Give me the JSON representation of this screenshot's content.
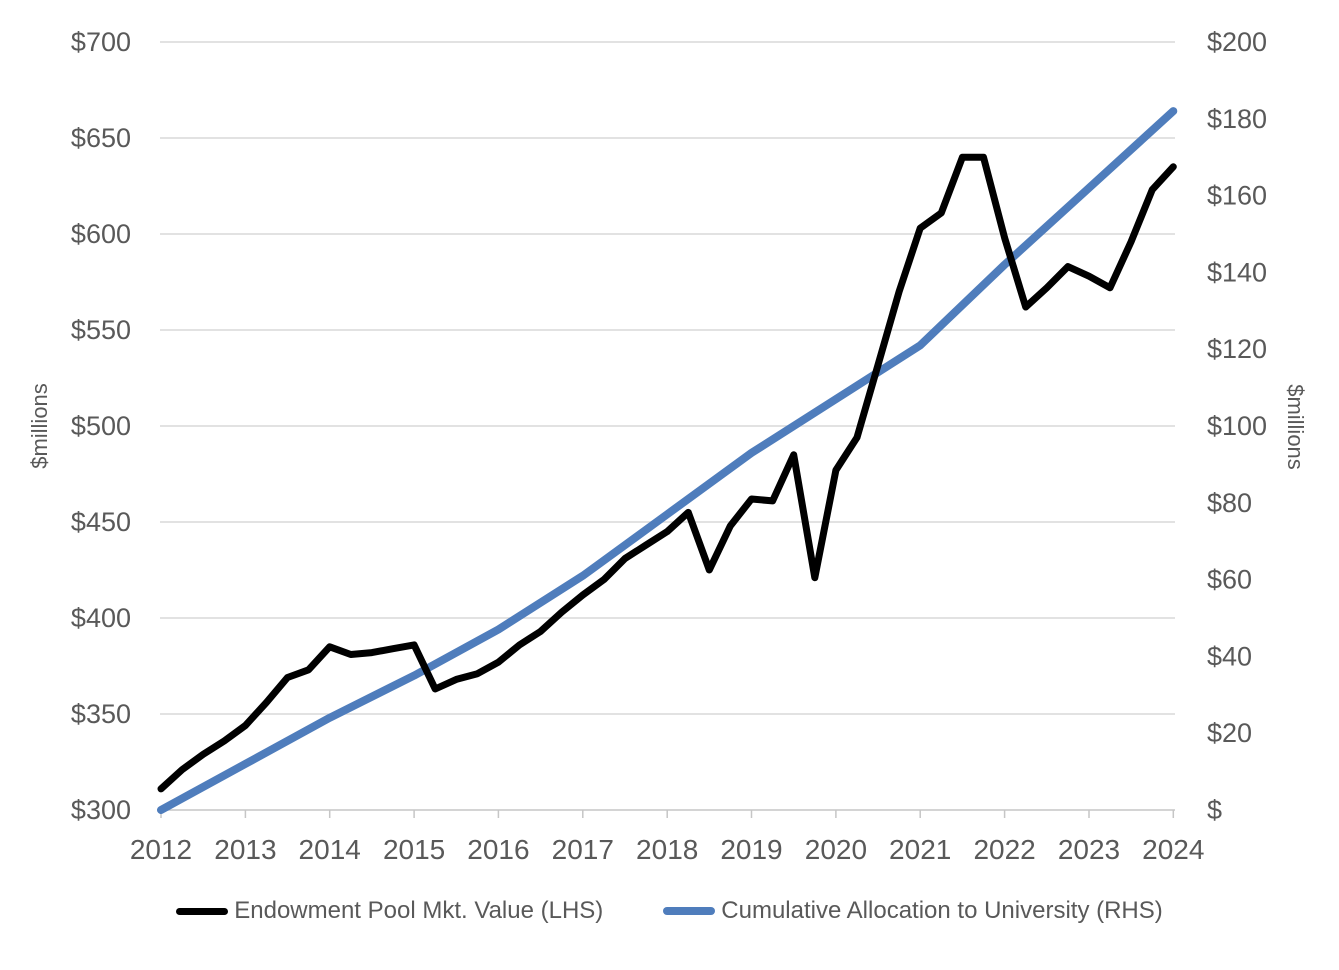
{
  "chart_data": {
    "type": "line",
    "title": "",
    "left_axis": {
      "label": "$millions",
      "min": 300,
      "max": 700,
      "step": 50,
      "tick_values": [
        300,
        350,
        400,
        450,
        500,
        550,
        600,
        650,
        700
      ],
      "tick_labels": [
        "$300",
        "$350",
        "$400",
        "$450",
        "$500",
        "$550",
        "$600",
        "$650",
        "$700"
      ]
    },
    "right_axis": {
      "label": "$millions",
      "min": 0,
      "max": 200,
      "step": 20,
      "tick_values": [
        0,
        20,
        40,
        60,
        80,
        100,
        120,
        140,
        160,
        180,
        200
      ],
      "tick_labels": [
        "$",
        "$20",
        "$40",
        "$60",
        "$80",
        "$100",
        "$120",
        "$140",
        "$160",
        "$180",
        "$200"
      ]
    },
    "x_axis": {
      "min": 2012,
      "max": 2024,
      "tick_values": [
        2012,
        2013,
        2014,
        2015,
        2016,
        2017,
        2018,
        2019,
        2020,
        2021,
        2022,
        2023,
        2024
      ],
      "tick_labels": [
        "2012",
        "2013",
        "2014",
        "2015",
        "2016",
        "2017",
        "2018",
        "2019",
        "2020",
        "2021",
        "2022",
        "2023",
        "2024"
      ]
    },
    "grid": "horizontal",
    "legend_position": "bottom",
    "colors": {
      "grid": "#D9D9D9",
      "axis": "#C6C6C6",
      "tick_text": "#595959"
    },
    "series": [
      {
        "name": "Endowment Pool Mkt. Value (LHS)",
        "axis": "left",
        "color": "#000000",
        "x": [
          2012.0,
          2012.25,
          2012.5,
          2012.75,
          2013.0,
          2013.25,
          2013.5,
          2013.75,
          2014.0,
          2014.25,
          2014.5,
          2014.75,
          2015.0,
          2015.25,
          2015.5,
          2015.75,
          2016.0,
          2016.25,
          2016.5,
          2016.75,
          2017.0,
          2017.25,
          2017.5,
          2017.75,
          2018.0,
          2018.25,
          2018.5,
          2018.75,
          2019.0,
          2019.25,
          2019.5,
          2019.75,
          2020.0,
          2020.25,
          2020.5,
          2020.75,
          2021.0,
          2021.25,
          2021.5,
          2021.75,
          2022.0,
          2022.25,
          2022.5,
          2022.75,
          2023.0,
          2023.25,
          2023.5,
          2023.75,
          2024.0
        ],
        "values": [
          311,
          321,
          329,
          336,
          344,
          356,
          369,
          373,
          385,
          381,
          382,
          384,
          386,
          363,
          368,
          371,
          377,
          386,
          393,
          403,
          412,
          420,
          431,
          438,
          445,
          455,
          425,
          448,
          462,
          461,
          485,
          421,
          477,
          494,
          532,
          570,
          603,
          611,
          640,
          640,
          598,
          562,
          572,
          583,
          578,
          572,
          596,
          623,
          635
        ]
      },
      {
        "name": "Cumulative Allocation to University (RHS)",
        "axis": "right",
        "color": "#4F7DBC",
        "x": [
          2012,
          2013,
          2014,
          2015,
          2016,
          2017,
          2018,
          2019,
          2020,
          2021,
          2022,
          2023,
          2024
        ],
        "values": [
          0,
          12,
          24,
          35,
          47,
          61,
          77,
          93,
          107,
          121,
          142,
          162,
          182
        ]
      }
    ]
  },
  "legend": {
    "items": [
      {
        "label": "Endowment Pool Mkt. Value (LHS)"
      },
      {
        "label": "Cumulative Allocation to University (RHS)"
      }
    ]
  }
}
